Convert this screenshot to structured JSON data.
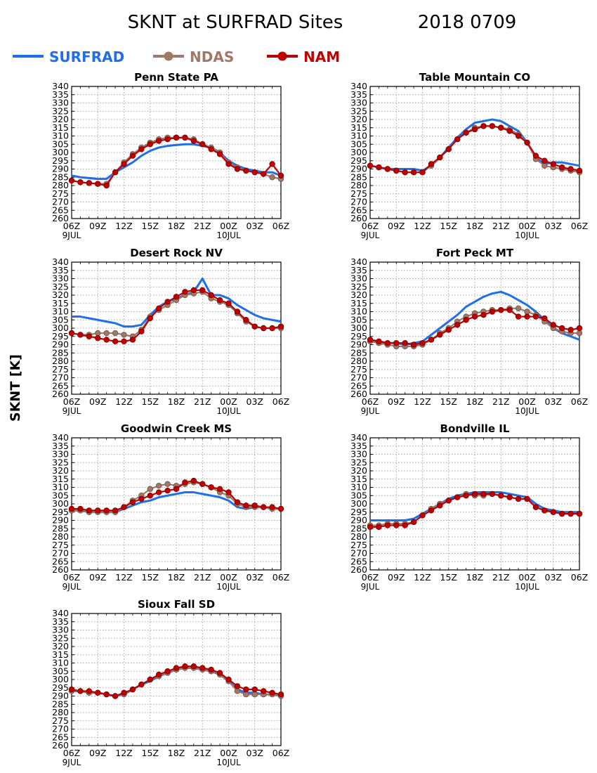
{
  "title": "SKNT at SURFRAD Sites",
  "date": "2018 0709",
  "ylabel": "SKNT [K]",
  "colors": {
    "SURFRAD": "#1f6fe6",
    "NDAS": "#a07868",
    "NAM": "#c00000"
  },
  "legend": [
    {
      "name": "SURFRAD",
      "marker": "none"
    },
    {
      "name": "NDAS",
      "marker": "circle"
    },
    {
      "name": "NAM",
      "marker": "circle"
    }
  ],
  "axes": {
    "y_ticks": [
      260,
      265,
      270,
      275,
      280,
      285,
      290,
      295,
      300,
      305,
      310,
      315,
      320,
      325,
      330,
      335,
      340
    ],
    "ylim": [
      260,
      340
    ],
    "x_ticks": [
      "06Z",
      "09Z",
      "12Z",
      "15Z",
      "18Z",
      "21Z",
      "00Z",
      "03Z",
      "06Z"
    ],
    "x_hours": [
      0,
      3,
      6,
      9,
      12,
      15,
      18,
      21,
      24
    ],
    "x_day_labels": [
      "9JUL",
      "10JUL"
    ],
    "grid": true
  },
  "chart_data": [
    {
      "type": "line",
      "title": "Penn State PA",
      "x": [
        0,
        1,
        2,
        3,
        4,
        5,
        6,
        7,
        8,
        9,
        10,
        11,
        12,
        13,
        14,
        15,
        16,
        17,
        18,
        19,
        20,
        21,
        22,
        23,
        24
      ],
      "series": [
        {
          "name": "SURFRAD",
          "values": [
            286,
            285,
            284.5,
            284,
            284,
            288,
            291,
            294,
            298,
            301,
            303,
            304,
            304.5,
            305,
            305,
            304,
            303,
            300,
            295,
            292,
            290,
            289,
            288,
            288,
            286
          ]
        },
        {
          "name": "NDAS",
          "values": [
            283,
            282,
            281.5,
            281,
            281,
            288,
            294,
            299,
            303,
            306,
            308,
            309,
            309,
            309,
            308,
            305,
            303,
            300,
            294,
            291,
            289,
            288,
            287,
            285,
            284
          ]
        },
        {
          "name": "NAM",
          "values": [
            283,
            282,
            281.5,
            281,
            280,
            288,
            293,
            298,
            302,
            305,
            307,
            308,
            309,
            309,
            307,
            305,
            302,
            299,
            293,
            290,
            289,
            288,
            287,
            293,
            286
          ]
        }
      ]
    },
    {
      "type": "line",
      "title": "Table Mountain CO",
      "x": [
        0,
        1,
        2,
        3,
        4,
        5,
        6,
        7,
        8,
        9,
        10,
        11,
        12,
        13,
        14,
        15,
        16,
        17,
        18,
        19,
        20,
        21,
        22,
        23,
        24
      ],
      "series": [
        {
          "name": "SURFRAD",
          "values": [
            292,
            291,
            290,
            290,
            290,
            290,
            289,
            292,
            297,
            303,
            309,
            314,
            318,
            319,
            320,
            319,
            316,
            313,
            306,
            297,
            293,
            294,
            294,
            293,
            292
          ]
        },
        {
          "name": "NDAS",
          "values": [
            292,
            291,
            290,
            289,
            288,
            288,
            288,
            292,
            297,
            302,
            308,
            312,
            315,
            316,
            316,
            315,
            314,
            311,
            306,
            296,
            292,
            291,
            290,
            289,
            288
          ]
        },
        {
          "name": "NAM",
          "values": [
            292,
            291,
            290,
            289,
            288,
            288,
            288,
            293,
            297,
            302,
            308,
            312,
            314,
            316,
            316,
            315,
            313,
            310,
            306,
            298,
            295,
            293,
            291,
            290,
            289
          ]
        }
      ]
    },
    {
      "type": "line",
      "title": "Desert Rock NV",
      "x": [
        0,
        1,
        2,
        3,
        4,
        5,
        6,
        7,
        8,
        9,
        10,
        11,
        12,
        13,
        14,
        15,
        16,
        17,
        18,
        19,
        20,
        21,
        22,
        23,
        24
      ],
      "series": [
        {
          "name": "SURFRAD",
          "values": [
            307,
            307,
            306,
            305,
            304,
            303,
            301,
            301,
            302,
            308,
            313,
            316,
            318,
            320,
            322,
            330,
            320,
            320,
            318,
            314,
            311,
            308,
            306,
            305,
            304
          ]
        },
        {
          "name": "NDAS",
          "values": [
            297,
            296,
            296,
            297,
            297,
            297,
            296,
            295,
            299,
            307,
            311,
            314,
            317,
            320,
            321,
            322,
            318,
            316,
            314,
            309,
            304,
            301,
            300,
            300,
            300
          ]
        },
        {
          "name": "NAM",
          "values": [
            297,
            296,
            295,
            294,
            293,
            292,
            292,
            293,
            298,
            306,
            312,
            316,
            319,
            322,
            323,
            323,
            320,
            317,
            315,
            310,
            305,
            301,
            300,
            300,
            301
          ]
        }
      ]
    },
    {
      "type": "line",
      "title": "Fort Peck MT",
      "x": [
        0,
        1,
        2,
        3,
        4,
        5,
        6,
        7,
        8,
        9,
        10,
        11,
        12,
        13,
        14,
        15,
        16,
        17,
        18,
        19,
        20,
        21,
        22,
        23,
        24
      ],
      "series": [
        {
          "name": "SURFRAD",
          "values": [
            293,
            292,
            291,
            291,
            290,
            291,
            292,
            296,
            300,
            304,
            308,
            313,
            316,
            319,
            321,
            322,
            320,
            317,
            314,
            310,
            305,
            300,
            297,
            295,
            293
          ]
        },
        {
          "name": "NDAS",
          "values": [
            292,
            291,
            290,
            289,
            289,
            289,
            290,
            293,
            297,
            300,
            304,
            307,
            309,
            310,
            311,
            311,
            312,
            312,
            310,
            308,
            304,
            300,
            298,
            297,
            297
          ]
        },
        {
          "name": "NAM",
          "values": [
            293,
            292,
            291,
            291,
            291,
            290,
            291,
            293,
            296,
            299,
            302,
            305,
            307,
            308,
            310,
            311,
            311,
            307,
            307,
            307,
            306,
            302,
            300,
            299,
            300
          ]
        }
      ]
    },
    {
      "type": "line",
      "title": "Goodwin Creek MS",
      "x": [
        0,
        1,
        2,
        3,
        4,
        5,
        6,
        7,
        8,
        9,
        10,
        11,
        12,
        13,
        14,
        15,
        16,
        17,
        18,
        19,
        20,
        21,
        22,
        23,
        24
      ],
      "series": [
        {
          "name": "SURFRAD",
          "values": [
            296,
            296,
            295,
            295,
            295,
            295,
            297,
            299,
            301,
            302,
            304,
            305,
            306,
            307,
            307,
            306,
            305,
            304,
            302,
            298,
            297,
            298,
            298,
            297,
            297
          ]
        },
        {
          "name": "NDAS",
          "values": [
            296,
            296,
            295,
            295,
            295,
            295,
            298,
            302,
            305,
            309,
            311,
            312,
            311,
            312,
            313,
            312,
            310,
            307,
            305,
            300,
            298,
            298,
            298,
            297,
            297
          ]
        },
        {
          "name": "NAM",
          "values": [
            297,
            297,
            296,
            296,
            296,
            296,
            298,
            301,
            303,
            305,
            307,
            308,
            309,
            313,
            314,
            312,
            310,
            309,
            307,
            301,
            299,
            299,
            298,
            298,
            297
          ]
        }
      ]
    },
    {
      "type": "line",
      "title": "Bondville IL",
      "x": [
        0,
        1,
        2,
        3,
        4,
        5,
        6,
        7,
        8,
        9,
        10,
        11,
        12,
        13,
        14,
        15,
        16,
        17,
        18,
        19,
        20,
        21,
        22,
        23,
        24
      ],
      "series": [
        {
          "name": "SURFRAD",
          "values": [
            290,
            290,
            290,
            290,
            290,
            291,
            294,
            297,
            300,
            303,
            305,
            306,
            307,
            307,
            307,
            307,
            306,
            305,
            304,
            300,
            297,
            296,
            295,
            295,
            295
          ]
        },
        {
          "name": "NDAS",
          "values": [
            287,
            287,
            288,
            288,
            288,
            289,
            293,
            297,
            300,
            302,
            304,
            306,
            305,
            305,
            306,
            305,
            304,
            303,
            303,
            298,
            296,
            295,
            294,
            294,
            294
          ]
        },
        {
          "name": "NAM",
          "values": [
            286,
            286,
            287,
            287,
            287,
            289,
            293,
            296,
            299,
            302,
            304,
            305,
            306,
            306,
            306,
            305,
            304,
            303,
            303,
            298,
            296,
            295,
            294,
            294,
            294
          ]
        }
      ]
    },
    {
      "type": "line",
      "title": "Sioux Fall SD",
      "x": [
        0,
        1,
        2,
        3,
        4,
        5,
        6,
        7,
        8,
        9,
        10,
        11,
        12,
        13,
        14,
        15,
        16,
        17,
        18,
        19,
        20,
        21,
        22,
        23,
        24
      ],
      "series": [
        {
          "name": "SURFRAD",
          "values": [
            293,
            293,
            292,
            292,
            291,
            290,
            291,
            294,
            297,
            299,
            302,
            304,
            306,
            307,
            307,
            306,
            305,
            303,
            299,
            294,
            292,
            292,
            291,
            291,
            290
          ]
        },
        {
          "name": "NDAS",
          "values": [
            293,
            293,
            292,
            292,
            291,
            290,
            291,
            294,
            297,
            300,
            302,
            304,
            306,
            307,
            307,
            306,
            305,
            303,
            299,
            293,
            291,
            291,
            291,
            291,
            290
          ]
        },
        {
          "name": "NAM",
          "values": [
            294,
            293,
            293,
            292,
            291,
            290,
            292,
            294,
            297,
            300,
            303,
            305,
            307,
            308,
            308,
            307,
            306,
            304,
            300,
            296,
            294,
            294,
            293,
            292,
            291
          ]
        }
      ]
    }
  ]
}
